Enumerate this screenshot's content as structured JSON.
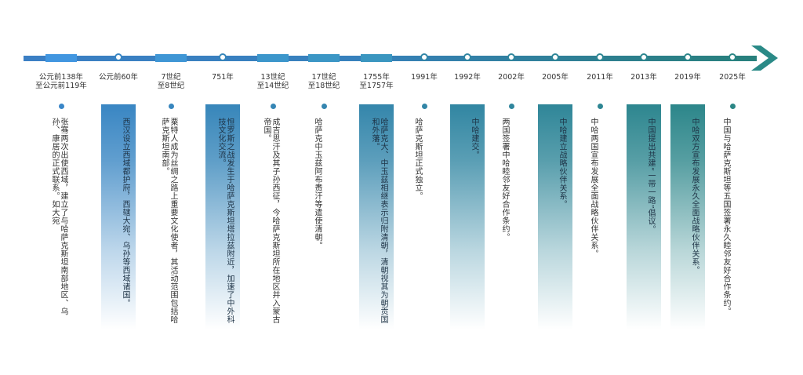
{
  "colors": {
    "blue": "#3a86c8",
    "teal": "#2b8685",
    "text": "#333333"
  },
  "events": [
    {
      "period": "公元前138年\n至公元前119年",
      "text": "张骞两次出使西域，建立了与哈萨克斯坦南部地区、乌孙、康居的正式联系。如大宛",
      "style": "plain"
    },
    {
      "period": "公元前60年",
      "text": "西汉设立西域都护府，西辖大宛、乌孙等西域诸国。",
      "style": "filled"
    },
    {
      "period": "7世纪\n至8世纪",
      "text": "粟特人成为丝绸之路上重要文化使者，其活动范围包括哈萨克斯坦南部。",
      "style": "plain"
    },
    {
      "period": "751年",
      "text": "怛罗斯之战发生于哈萨克斯坦塔拉兹附近，加速了中外科技文化交流。",
      "style": "filled"
    },
    {
      "period": "13世纪\n至14世纪",
      "text": "成吉思汗及其子孙西征，今哈萨克斯坦所在地区并入蒙古帝国。",
      "style": "plain"
    },
    {
      "period": "17世纪\n至18世纪",
      "text": "哈萨克中玉兹阿布赉汗等遣使清朝。",
      "style": "plain"
    },
    {
      "period": "1755年\n至1757年",
      "text": "哈萨克大、中玉兹相继表示归附清朝，清朝视其为朝贡国和外藩。",
      "style": "filled"
    },
    {
      "period": "1991年",
      "text": "哈萨克斯坦正式独立。",
      "style": "plain"
    },
    {
      "period": "1992年",
      "text": "中哈建交。",
      "style": "filled"
    },
    {
      "period": "2002年",
      "text": "两国签署中哈睦邻友好合作条约。",
      "style": "plain"
    },
    {
      "period": "2005年",
      "text": "中哈建立战略伙伴关系。",
      "style": "filled"
    },
    {
      "period": "2011年",
      "text": "中哈两国宣布发展全面战略伙伴关系。",
      "style": "plain"
    },
    {
      "period": "2013年",
      "text": "中国提出共建“一带一路”倡议。",
      "style": "filled"
    },
    {
      "period": "2019年",
      "text": "中哈双方宣布发展永久全面战略伙伴关系。",
      "style": "filled"
    },
    {
      "period": "2025年",
      "text": "中国与哈萨克斯坦等五国签署永久睦邻友好合作条约。",
      "style": "plain"
    }
  ]
}
